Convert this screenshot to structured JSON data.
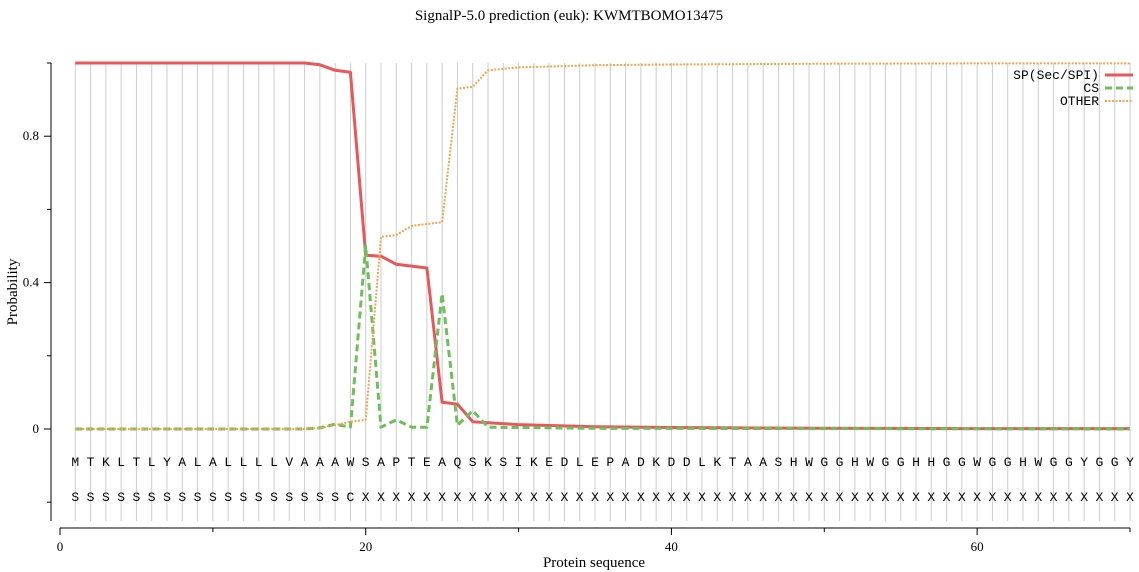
{
  "chart_data": {
    "type": "line",
    "title": "SignalP-5.0 prediction (euk):  KWMTBOMO13475",
    "xlabel": "Protein sequence",
    "ylabel": "Probability",
    "xlim": [
      0,
      70
    ],
    "ylim": [
      -0.25,
      1.0
    ],
    "x_ticks": [
      0,
      20,
      40,
      60
    ],
    "y_ticks": [
      0,
      0.4,
      0.8
    ],
    "y_tick_labels": [
      "0",
      "0.4",
      "0.8"
    ],
    "legend_placement": "top-right",
    "sequence": "MTKLTLYALALLLLVAAAWSAPTEAQSKSIKEDLEPADKDDLKTAASHWGGHWGGHHGGWGGHWGGYGGY",
    "labels": "SSSSSSSSSSSSSSSSSSCXXXXXXXXXXXXXXXXXXXXXXXXXXXXXXXXXXXXXXXXXXXXXXXXXXXX",
    "series": [
      {
        "name": "SP(Sec/SPI)",
        "color": "#e8585a",
        "dash": "solid",
        "x": [
          1,
          16,
          17,
          18,
          19,
          20,
          21,
          22,
          23,
          24,
          25,
          26,
          27,
          28,
          30,
          35,
          40,
          50,
          60,
          70
        ],
        "y": [
          1.0,
          1.0,
          0.995,
          0.98,
          0.975,
          0.475,
          0.472,
          0.45,
          0.445,
          0.44,
          0.073,
          0.068,
          0.02,
          0.017,
          0.012,
          0.006,
          0.004,
          0.002,
          0.001,
          0.001
        ]
      },
      {
        "name": "CS",
        "color": "#6cbf59",
        "dash": "dashed",
        "x": [
          1,
          16,
          17,
          18,
          19,
          20,
          21,
          22,
          23,
          24,
          25,
          26,
          27,
          28,
          35,
          70
        ],
        "y": [
          0.0,
          0.0,
          0.003,
          0.013,
          0.005,
          0.5,
          0.005,
          0.025,
          0.005,
          0.005,
          0.37,
          0.01,
          0.05,
          0.005,
          0.002,
          0.0
        ]
      },
      {
        "name": "OTHER",
        "color": "#f5a34b",
        "dash": "dotted",
        "x": [
          1,
          16,
          17,
          18,
          19,
          20,
          21,
          22,
          23,
          24,
          25,
          26,
          27,
          28,
          30,
          35,
          40,
          50,
          60,
          70
        ],
        "y": [
          0.0,
          0.0,
          0.003,
          0.01,
          0.02,
          0.025,
          0.525,
          0.53,
          0.555,
          0.56,
          0.565,
          0.93,
          0.935,
          0.98,
          0.988,
          0.994,
          0.996,
          0.998,
          0.999,
          0.999
        ]
      }
    ]
  }
}
